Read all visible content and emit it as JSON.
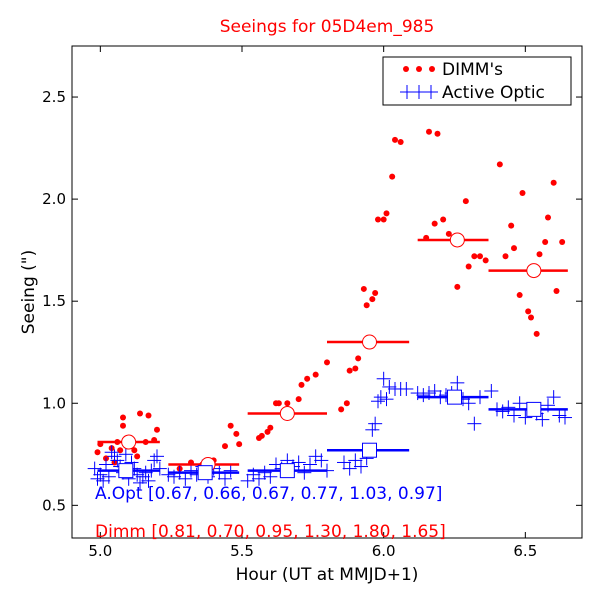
{
  "chart_data": {
    "type": "scatter",
    "title": "Seeings for 05D4em_985",
    "xlabel": "Hour (UT at MMJD+1)",
    "ylabel": "Seeing (\")",
    "xlim": [
      4.9,
      6.7
    ],
    "ylim": [
      0.34,
      2.75
    ],
    "x_ticks": [
      5.0,
      5.5,
      6.0,
      6.5
    ],
    "x_tick_labels": [
      "5.0",
      "5.5",
      "6.0",
      "6.5"
    ],
    "y_ticks": [
      0.5,
      1.0,
      1.5,
      2.0,
      2.5
    ],
    "y_tick_labels": [
      "0.5",
      "1.0",
      "1.5",
      "2.0",
      "2.5"
    ],
    "grid": false,
    "legend_position": "top-right",
    "colors": {
      "dimm": "#ff0000",
      "active_optic": "#0000ff",
      "title": "#ff0000"
    },
    "series": [
      {
        "name": "DIMM's",
        "marker": "dot",
        "color": "#ff0000",
        "points": [
          [
            4.99,
            0.76
          ],
          [
            5.0,
            0.8
          ],
          [
            5.02,
            0.73
          ],
          [
            5.04,
            0.78
          ],
          [
            5.05,
            0.71
          ],
          [
            5.06,
            0.81
          ],
          [
            5.07,
            0.77
          ],
          [
            5.08,
            0.89
          ],
          [
            5.08,
            0.93
          ],
          [
            5.11,
            0.79
          ],
          [
            5.12,
            0.77
          ],
          [
            5.13,
            0.74
          ],
          [
            5.14,
            0.95
          ],
          [
            5.16,
            0.81
          ],
          [
            5.17,
            0.94
          ],
          [
            5.19,
            0.82
          ],
          [
            5.2,
            0.87
          ],
          [
            5.28,
            0.68
          ],
          [
            5.32,
            0.71
          ],
          [
            5.36,
            0.7
          ],
          [
            5.4,
            0.72
          ],
          [
            5.44,
            0.79
          ],
          [
            5.46,
            0.89
          ],
          [
            5.48,
            0.85
          ],
          [
            5.49,
            0.8
          ],
          [
            5.56,
            0.83
          ],
          [
            5.57,
            0.84
          ],
          [
            5.59,
            0.86
          ],
          [
            5.6,
            0.88
          ],
          [
            5.62,
            1.0
          ],
          [
            5.63,
            1.0
          ],
          [
            5.66,
            1.0
          ],
          [
            5.7,
            1.02
          ],
          [
            5.71,
            1.09
          ],
          [
            5.73,
            1.12
          ],
          [
            5.76,
            1.14
          ],
          [
            5.8,
            1.2
          ],
          [
            5.85,
            0.97
          ],
          [
            5.87,
            1.0
          ],
          [
            5.88,
            1.16
          ],
          [
            5.9,
            1.17
          ],
          [
            5.91,
            1.22
          ],
          [
            5.93,
            1.56
          ],
          [
            5.94,
            1.48
          ],
          [
            5.96,
            1.51
          ],
          [
            5.97,
            1.54
          ],
          [
            5.98,
            1.9
          ],
          [
            6.0,
            1.9
          ],
          [
            6.01,
            1.93
          ],
          [
            6.03,
            2.11
          ],
          [
            6.04,
            2.29
          ],
          [
            6.06,
            2.28
          ],
          [
            6.15,
            1.81
          ],
          [
            6.16,
            2.33
          ],
          [
            6.18,
            1.88
          ],
          [
            6.19,
            2.32
          ],
          [
            6.21,
            1.9
          ],
          [
            6.23,
            1.83
          ],
          [
            6.26,
            1.57
          ],
          [
            6.29,
            1.99
          ],
          [
            6.3,
            1.67
          ],
          [
            6.32,
            1.72
          ],
          [
            6.34,
            1.72
          ],
          [
            6.36,
            1.7
          ],
          [
            6.41,
            2.17
          ],
          [
            6.43,
            1.72
          ],
          [
            6.45,
            1.87
          ],
          [
            6.46,
            1.76
          ],
          [
            6.48,
            1.53
          ],
          [
            6.49,
            2.03
          ],
          [
            6.51,
            1.45
          ],
          [
            6.52,
            1.42
          ],
          [
            6.54,
            1.34
          ],
          [
            6.55,
            1.73
          ],
          [
            6.57,
            1.79
          ],
          [
            6.58,
            1.91
          ],
          [
            6.6,
            2.08
          ],
          [
            6.61,
            1.55
          ],
          [
            6.63,
            1.79
          ]
        ]
      },
      {
        "name": "Active Optic",
        "marker": "plus",
        "color": "#0000ff",
        "points": [
          [
            4.98,
            0.68
          ],
          [
            4.99,
            0.63
          ],
          [
            5.0,
            0.65
          ],
          [
            5.01,
            0.62
          ],
          [
            5.02,
            0.7
          ],
          [
            5.03,
            0.64
          ],
          [
            5.04,
            0.76
          ],
          [
            5.05,
            0.74
          ],
          [
            5.06,
            0.72
          ],
          [
            5.07,
            0.69
          ],
          [
            5.08,
            0.66
          ],
          [
            5.09,
            0.75
          ],
          [
            5.1,
            0.63
          ],
          [
            5.11,
            0.71
          ],
          [
            5.12,
            0.68
          ],
          [
            5.13,
            0.65
          ],
          [
            5.14,
            0.61
          ],
          [
            5.15,
            0.64
          ],
          [
            5.16,
            0.66
          ],
          [
            5.17,
            0.62
          ],
          [
            5.18,
            0.67
          ],
          [
            5.19,
            0.72
          ],
          [
            5.2,
            0.74
          ],
          [
            5.21,
            0.68
          ],
          [
            5.24,
            0.65
          ],
          [
            5.26,
            0.64
          ],
          [
            5.28,
            0.66
          ],
          [
            5.3,
            0.63
          ],
          [
            5.32,
            0.67
          ],
          [
            5.34,
            0.65
          ],
          [
            5.36,
            0.69
          ],
          [
            5.38,
            0.64
          ],
          [
            5.4,
            0.68
          ],
          [
            5.42,
            0.66
          ],
          [
            5.44,
            0.63
          ],
          [
            5.46,
            0.67
          ],
          [
            5.52,
            0.62
          ],
          [
            5.54,
            0.65
          ],
          [
            5.56,
            0.63
          ],
          [
            5.58,
            0.66
          ],
          [
            5.6,
            0.64
          ],
          [
            5.62,
            0.7
          ],
          [
            5.64,
            0.68
          ],
          [
            5.66,
            0.72
          ],
          [
            5.68,
            0.69
          ],
          [
            5.7,
            0.71
          ],
          [
            5.72,
            0.66
          ],
          [
            5.74,
            0.7
          ],
          [
            5.76,
            0.74
          ],
          [
            5.78,
            0.72
          ],
          [
            5.8,
            0.67
          ],
          [
            5.86,
            0.71
          ],
          [
            5.88,
            0.68
          ],
          [
            5.9,
            0.72
          ],
          [
            5.92,
            0.69
          ],
          [
            5.94,
            0.73
          ],
          [
            5.96,
            0.87
          ],
          [
            5.97,
            0.9
          ],
          [
            5.98,
            1.01
          ],
          [
            5.99,
            1.03
          ],
          [
            6.0,
            1.12
          ],
          [
            6.01,
            1.02
          ],
          [
            6.02,
            1.08
          ],
          [
            6.04,
            1.07
          ],
          [
            6.06,
            1.07
          ],
          [
            6.08,
            1.07
          ],
          [
            6.12,
            1.05
          ],
          [
            6.14,
            1.04
          ],
          [
            6.16,
            1.05
          ],
          [
            6.18,
            1.06
          ],
          [
            6.2,
            1.03
          ],
          [
            6.22,
            1.04
          ],
          [
            6.24,
            1.05
          ],
          [
            6.26,
            1.1
          ],
          [
            6.28,
            1.02
          ],
          [
            6.3,
            1.0
          ],
          [
            6.32,
            0.9
          ],
          [
            6.34,
            1.03
          ],
          [
            6.38,
            1.06
          ],
          [
            6.4,
            0.97
          ],
          [
            6.42,
            0.96
          ],
          [
            6.44,
            0.98
          ],
          [
            6.46,
            0.94
          ],
          [
            6.48,
            1.0
          ],
          [
            6.5,
            0.93
          ],
          [
            6.52,
            0.97
          ],
          [
            6.54,
            0.95
          ],
          [
            6.56,
            0.92
          ],
          [
            6.58,
            0.99
          ],
          [
            6.6,
            1.03
          ],
          [
            6.62,
            0.94
          ],
          [
            6.64,
            0.93
          ]
        ]
      }
    ],
    "bins": {
      "dimm": [
        {
          "x_start": 4.99,
          "x_end": 5.21,
          "center": 5.1,
          "value": 0.81
        },
        {
          "x_start": 5.24,
          "x_end": 5.49,
          "center": 5.38,
          "value": 0.7
        },
        {
          "x_start": 5.52,
          "x_end": 5.8,
          "center": 5.66,
          "value": 0.95
        },
        {
          "x_start": 5.8,
          "x_end": 6.09,
          "center": 5.95,
          "value": 1.3
        },
        {
          "x_start": 6.12,
          "x_end": 6.37,
          "center": 6.26,
          "value": 1.8
        },
        {
          "x_start": 6.37,
          "x_end": 6.65,
          "center": 6.53,
          "value": 1.65
        }
      ],
      "active_optic": [
        {
          "x_start": 4.99,
          "x_end": 5.21,
          "center": 5.09,
          "value": 0.67
        },
        {
          "x_start": 5.24,
          "x_end": 5.49,
          "center": 5.37,
          "value": 0.66
        },
        {
          "x_start": 5.52,
          "x_end": 5.8,
          "center": 5.66,
          "value": 0.67
        },
        {
          "x_start": 5.8,
          "x_end": 6.09,
          "center": 5.95,
          "value": 0.77
        },
        {
          "x_start": 6.12,
          "x_end": 6.37,
          "center": 6.25,
          "value": 1.03
        },
        {
          "x_start": 6.37,
          "x_end": 6.65,
          "center": 6.53,
          "value": 0.97
        }
      ]
    },
    "annotations": {
      "aopt_text": "A.Opt [0.67, 0.66, 0.67, 0.77, 1.03, 0.97]",
      "dimm_text": "Dimm [0.81, 0.70, 0.95, 1.30, 1.80, 1.65]"
    }
  }
}
